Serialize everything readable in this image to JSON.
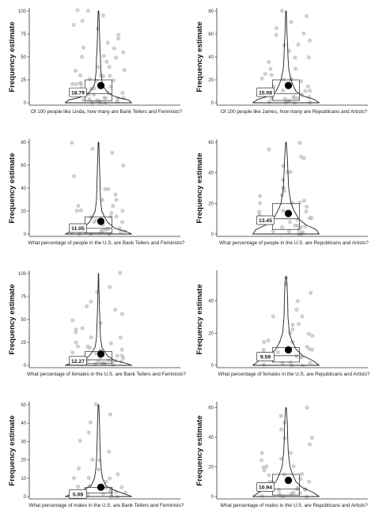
{
  "chart_data": [
    {
      "type": "violin",
      "ylabel": "Frequency estimate",
      "xlabel": "Of 100 people like Linda, how many are Bank Tellers and Feminists?",
      "yticks": [
        0,
        25,
        50,
        75,
        100
      ],
      "ylim": [
        0,
        100
      ],
      "mean": 18.79,
      "mean_label": "18.79",
      "box": {
        "q1": 2,
        "median": 10,
        "q3": 25
      },
      "violin_profile": [
        [
          0,
          1.0
        ],
        [
          3,
          0.9
        ],
        [
          6,
          0.55
        ],
        [
          10,
          0.3
        ],
        [
          15,
          0.2
        ],
        [
          20,
          0.12
        ],
        [
          25,
          0.1
        ],
        [
          35,
          0.07
        ],
        [
          50,
          0.06
        ],
        [
          60,
          0.04
        ],
        [
          75,
          0.03
        ],
        [
          90,
          0.02
        ],
        [
          100,
          0.01
        ]
      ],
      "points": [
        0,
        0,
        1,
        1,
        2,
        2,
        3,
        4,
        5,
        5,
        5,
        6,
        8,
        10,
        10,
        10,
        12,
        15,
        15,
        15,
        18,
        20,
        20,
        20,
        22,
        25,
        25,
        25,
        28,
        30,
        30,
        30,
        35,
        35,
        40,
        40,
        45,
        50,
        50,
        50,
        55,
        60,
        60,
        65,
        70,
        75,
        80,
        85,
        90,
        95,
        100,
        100
      ]
    },
    {
      "type": "violin",
      "ylabel": "Frequency estimate",
      "xlabel": "Of 100 people like James, how many are Republicans and Artists?",
      "yticks": [
        0,
        20,
        40,
        60,
        80
      ],
      "ylim": [
        0,
        80
      ],
      "mean": 15.08,
      "mean_label": "15.08",
      "box": {
        "q1": 2,
        "median": 8,
        "q3": 20
      },
      "violin_profile": [
        [
          0,
          1.0
        ],
        [
          3,
          0.85
        ],
        [
          6,
          0.5
        ],
        [
          10,
          0.3
        ],
        [
          15,
          0.22
        ],
        [
          20,
          0.15
        ],
        [
          30,
          0.08
        ],
        [
          40,
          0.06
        ],
        [
          50,
          0.05
        ],
        [
          60,
          0.03
        ],
        [
          70,
          0.02
        ],
        [
          80,
          0.01
        ]
      ],
      "points": [
        0,
        0,
        1,
        1,
        2,
        2,
        3,
        4,
        5,
        5,
        5,
        6,
        8,
        10,
        10,
        10,
        12,
        15,
        15,
        15,
        18,
        20,
        20,
        20,
        22,
        25,
        25,
        30,
        30,
        35,
        40,
        40,
        45,
        50,
        50,
        55,
        60,
        60,
        65,
        70,
        75,
        80
      ]
    },
    {
      "type": "violin",
      "ylabel": "Frequency estimate",
      "xlabel": "What percentage of people in the U.S. are Bank Tellers and Feminists?",
      "yticks": [
        0,
        20,
        40,
        60,
        80
      ],
      "ylim": [
        0,
        80
      ],
      "mean": 11.05,
      "mean_label": "11.05",
      "box": {
        "q1": 1,
        "median": 5,
        "q3": 15
      },
      "violin_profile": [
        [
          0,
          1.0
        ],
        [
          2,
          0.85
        ],
        [
          5,
          0.5
        ],
        [
          10,
          0.28
        ],
        [
          15,
          0.18
        ],
        [
          20,
          0.1
        ],
        [
          30,
          0.06
        ],
        [
          40,
          0.05
        ],
        [
          50,
          0.04
        ],
        [
          60,
          0.03
        ],
        [
          70,
          0.02
        ],
        [
          80,
          0.01
        ]
      ],
      "points": [
        0,
        0,
        0,
        1,
        1,
        2,
        2,
        3,
        3,
        5,
        5,
        5,
        6,
        8,
        10,
        10,
        10,
        12,
        15,
        15,
        15,
        18,
        20,
        20,
        20,
        25,
        25,
        30,
        30,
        35,
        40,
        40,
        50,
        60,
        70,
        75,
        80
      ]
    },
    {
      "type": "violin",
      "ylabel": "Frequency estimate",
      "xlabel": "What percentage of people in the U.S. are Republicans and Artists?",
      "yticks": [
        0,
        20,
        40,
        60
      ],
      "ylim": [
        0,
        60
      ],
      "mean": 13.45,
      "mean_label": "13.45",
      "box": {
        "q1": 3,
        "median": 10,
        "q3": 20
      },
      "violin_profile": [
        [
          0,
          1.0
        ],
        [
          3,
          0.9
        ],
        [
          6,
          0.6
        ],
        [
          10,
          0.38
        ],
        [
          15,
          0.25
        ],
        [
          20,
          0.15
        ],
        [
          30,
          0.08
        ],
        [
          40,
          0.06
        ],
        [
          50,
          0.04
        ],
        [
          60,
          0.01
        ]
      ],
      "points": [
        0,
        0,
        1,
        1,
        2,
        2,
        3,
        4,
        5,
        5,
        5,
        6,
        8,
        10,
        10,
        10,
        12,
        15,
        15,
        15,
        18,
        20,
        20,
        20,
        22,
        25,
        25,
        28,
        30,
        30,
        35,
        40,
        40,
        45,
        50,
        50,
        55,
        60
      ]
    },
    {
      "type": "violin",
      "ylabel": "Frequency estimate",
      "xlabel": "What percentage of females in the U.S. are Bank Tellers and Feminists?",
      "yticks": [
        0,
        25,
        50,
        75,
        100
      ],
      "ylim": [
        0,
        100
      ],
      "mean": 12.27,
      "mean_label": "12.27",
      "box": {
        "q1": 2,
        "median": 6,
        "q3": 15
      },
      "violin_profile": [
        [
          0,
          1.0
        ],
        [
          2,
          0.85
        ],
        [
          5,
          0.5
        ],
        [
          10,
          0.28
        ],
        [
          15,
          0.18
        ],
        [
          20,
          0.1
        ],
        [
          30,
          0.06
        ],
        [
          40,
          0.05
        ],
        [
          50,
          0.04
        ],
        [
          60,
          0.03
        ],
        [
          75,
          0.02
        ],
        [
          90,
          0.01
        ],
        [
          100,
          0.005
        ]
      ],
      "points": [
        0,
        0,
        1,
        1,
        2,
        2,
        3,
        4,
        5,
        5,
        5,
        6,
        8,
        10,
        10,
        10,
        12,
        15,
        15,
        15,
        18,
        20,
        20,
        20,
        25,
        25,
        30,
        30,
        35,
        40,
        40,
        45,
        50,
        55,
        60,
        65,
        70,
        80,
        85,
        100
      ]
    },
    {
      "type": "violin",
      "ylabel": "Frequency estimate",
      "xlabel": "What percentage of females in the U.S. are Republicans and Artists?",
      "yticks": [
        0,
        20,
        40
      ],
      "ylim": [
        0,
        57
      ],
      "mean": 9.59,
      "mean_label": "9.59",
      "box": {
        "q1": 2,
        "median": 6,
        "q3": 11
      },
      "violin_profile": [
        [
          0,
          1.0
        ],
        [
          3,
          0.8
        ],
        [
          6,
          0.5
        ],
        [
          10,
          0.3
        ],
        [
          15,
          0.18
        ],
        [
          20,
          0.1
        ],
        [
          30,
          0.06
        ],
        [
          40,
          0.05
        ],
        [
          50,
          0.03
        ],
        [
          55,
          0.01
        ]
      ],
      "points": [
        0,
        0,
        1,
        1,
        2,
        2,
        3,
        4,
        5,
        5,
        5,
        6,
        8,
        10,
        10,
        10,
        12,
        15,
        15,
        15,
        18,
        20,
        20,
        22,
        25,
        25,
        30,
        30,
        35,
        40,
        45,
        50,
        55
      ]
    },
    {
      "type": "violin",
      "ylabel": "Frequency estimate",
      "xlabel": "What percentage of males in the U.S. are Bank Tellers and Feminists?",
      "yticks": [
        0,
        10,
        20,
        30,
        40,
        50
      ],
      "ylim": [
        0,
        50
      ],
      "mean": 5.08,
      "mean_label": "5.08",
      "box": {
        "q1": 0,
        "median": 2,
        "q3": 5
      },
      "violin_profile": [
        [
          0,
          1.0
        ],
        [
          2,
          0.7
        ],
        [
          4,
          0.4
        ],
        [
          6,
          0.22
        ],
        [
          10,
          0.12
        ],
        [
          15,
          0.08
        ],
        [
          20,
          0.06
        ],
        [
          25,
          0.05
        ],
        [
          30,
          0.04
        ],
        [
          40,
          0.03
        ],
        [
          50,
          0.01
        ]
      ],
      "points": [
        0,
        0,
        0,
        0,
        1,
        1,
        1,
        2,
        2,
        2,
        3,
        3,
        4,
        5,
        5,
        5,
        6,
        8,
        10,
        10,
        10,
        12,
        15,
        15,
        20,
        20,
        25,
        30,
        35,
        40,
        45,
        50
      ]
    },
    {
      "type": "violin",
      "ylabel": "Frequency estimate",
      "xlabel": "What percentage of males in the U.S. are Republicans and Artists?",
      "yticks": [
        0,
        20,
        40,
        60
      ],
      "ylim": [
        0,
        62
      ],
      "mean": 10.94,
      "mean_label": "10.94",
      "box": {
        "q1": 1,
        "median": 5,
        "q3": 15
      },
      "violin_profile": [
        [
          0,
          1.0
        ],
        [
          3,
          0.8
        ],
        [
          6,
          0.5
        ],
        [
          10,
          0.3
        ],
        [
          15,
          0.2
        ],
        [
          20,
          0.12
        ],
        [
          30,
          0.07
        ],
        [
          40,
          0.05
        ],
        [
          50,
          0.04
        ],
        [
          60,
          0.01
        ]
      ],
      "points": [
        0,
        0,
        1,
        1,
        2,
        2,
        3,
        4,
        5,
        5,
        5,
        6,
        8,
        10,
        10,
        10,
        12,
        15,
        15,
        15,
        18,
        20,
        20,
        20,
        25,
        25,
        30,
        30,
        35,
        40,
        40,
        45,
        50,
        55,
        60
      ]
    }
  ]
}
